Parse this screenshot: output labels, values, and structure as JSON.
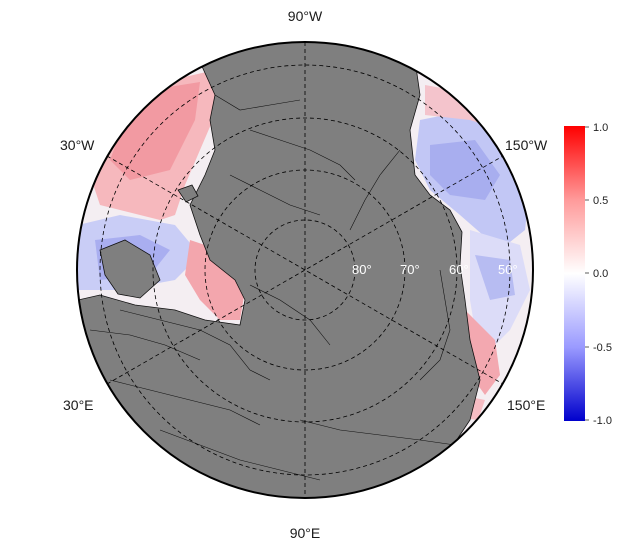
{
  "map": {
    "projection": "north-polar-stereographic",
    "longitude_labels": {
      "top": "90°W",
      "bottom": "90°E",
      "upper_left": "30°W",
      "upper_right": "150°W",
      "lower_left": "30°E",
      "lower_right": "150°E"
    },
    "latitude_labels": [
      "80°",
      "70°",
      "60°",
      "50°"
    ],
    "land_color": "#7f7f7f",
    "ocean_fill": "diverging correlation field"
  },
  "colorbar": {
    "ticks": [
      "1.0",
      "0.5",
      "0.0",
      "-0.5",
      "-1.0"
    ],
    "max_color": "#ff0000",
    "mid_color": "#ffffff",
    "min_color": "#0000cc"
  }
}
